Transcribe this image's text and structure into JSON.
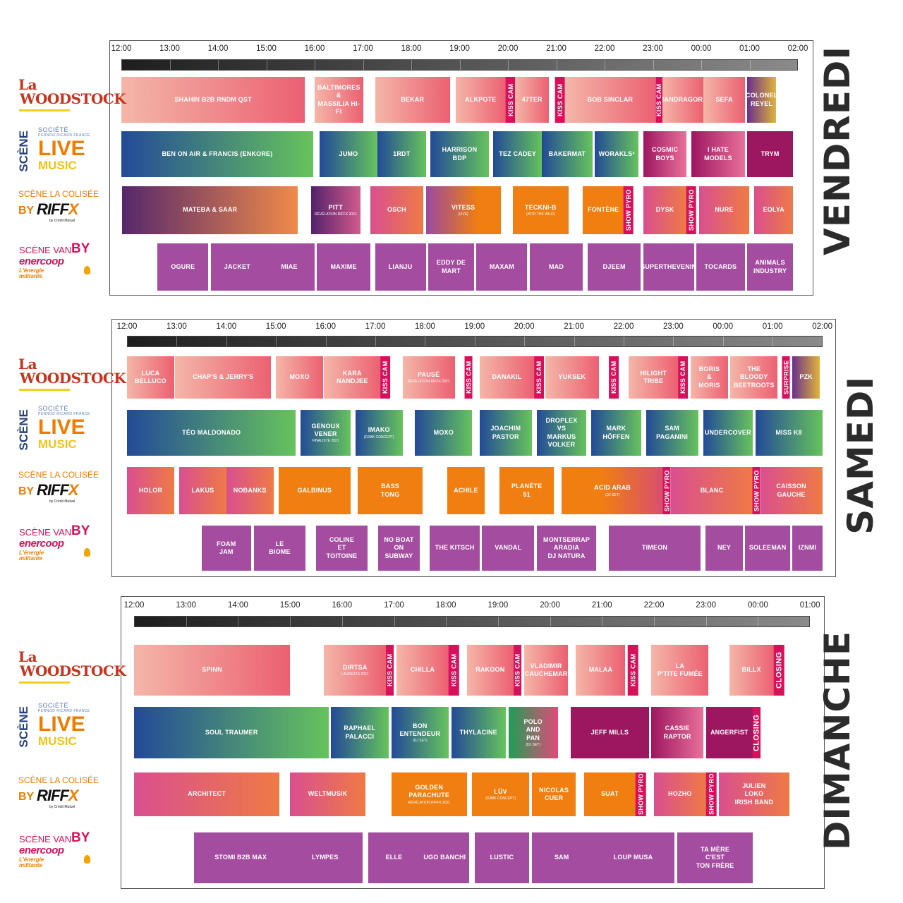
{
  "colors": {
    "woodstock": [
      "#f4b6a8",
      "#ec6072"
    ],
    "live": [
      "#234a98",
      "#66c35c"
    ],
    "colisee_orange": "#f07e10",
    "colisee_grad": [
      "#d94f8f",
      "#ef7a45"
    ],
    "van_purple": "#a44da0",
    "dark_magenta": "#9d1660",
    "tag_pink": "#d6105b"
  },
  "logos": {
    "woodstock": {
      "line1": "La",
      "line2": "WOODSTOCK"
    },
    "live": {
      "scene": "SCÈNE",
      "societe": "SOCIÉTÉ",
      "societe_sub": "PERNOD RICARD FRANCE",
      "live": "LIVE",
      "music": "MUSIC"
    },
    "colisee": {
      "title": "SCÈNE LA COLISÉE",
      "by": "BY",
      "riff": "RIFF",
      "x": "X",
      "cm": "by Crédit Mutuel"
    },
    "van": {
      "title": "SCÈNE VAN",
      "by": "BY",
      "brand": "enercoop",
      "tagline": "L'énergie\nmilitante"
    }
  },
  "days": [
    {
      "name": "VENDREDI",
      "ticks": [
        "12:00",
        "13:00",
        "14:00",
        "15:00",
        "16:00",
        "17:00",
        "18:00",
        "19:00",
        "20:00",
        "21:00",
        "22:00",
        "23:00",
        "00:00",
        "01:00",
        "02:00"
      ],
      "rows": [
        [
          {
            "t": "SHAHIN B2B RNDM QST",
            "x1": 0.0,
            "x2": 3.8,
            "s": "wood"
          },
          {
            "t": "BALTIMORES\n&\nMASSILIA HI-FI",
            "x1": 4.0,
            "x2": 5.0,
            "s": "wood"
          },
          {
            "t": "BEKAR",
            "x1": 5.25,
            "x2": 6.8,
            "s": "wood"
          },
          {
            "t": "ALKPOTE",
            "x1": 6.92,
            "x2": 7.95,
            "s": "wood"
          },
          {
            "tag": "KISS CAM",
            "x1": 7.95,
            "x2": 8.15
          },
          {
            "t": "47TER",
            "x1": 8.15,
            "x2": 8.85,
            "s": "wood"
          },
          {
            "tag": "KISS CAM",
            "x1": 8.98,
            "x2": 9.18
          },
          {
            "t": "BOB SINCLAR",
            "x1": 9.18,
            "x2": 11.05,
            "s": "wood"
          },
          {
            "tag": "KISS CAM",
            "x1": 11.05,
            "x2": 11.2
          },
          {
            "t": "MANDRAGORA",
            "x1": 11.2,
            "x2": 12.05,
            "s": "wood"
          },
          {
            "t": "SEFA",
            "x1": 12.05,
            "x2": 12.9,
            "s": "wood"
          },
          {
            "t": "COLONEL\nREYEL",
            "x1": 12.95,
            "x2": 13.55,
            "s": "colonel"
          }
        ],
        [
          {
            "t": "BEN ON AIR & FRANCIS (ENKORE)",
            "x1": 0.0,
            "x2": 3.97,
            "s": "live"
          },
          {
            "t": "JUMO",
            "x1": 4.1,
            "x2": 5.3,
            "s": "live"
          },
          {
            "t": "1RDT",
            "x1": 5.3,
            "x2": 6.3,
            "s": "live"
          },
          {
            "t": "HARRISON\nBDP",
            "x1": 6.4,
            "x2": 7.6,
            "s": "live"
          },
          {
            "t": "TEZ CADEY",
            "x1": 7.7,
            "x2": 8.7,
            "s": "live"
          },
          {
            "t": "BAKERMAT",
            "x1": 8.7,
            "x2": 9.75,
            "s": "live"
          },
          {
            "t": "WORAKLS²",
            "x1": 9.8,
            "x2": 10.7,
            "s": "live"
          },
          {
            "t": "COSMIC\nBOYS",
            "x1": 10.8,
            "x2": 11.7,
            "s": "mag"
          },
          {
            "t": "I HATE\nMODELS",
            "x1": 11.8,
            "x2": 12.9,
            "s": "mag"
          },
          {
            "t": "TRYM",
            "x1": 12.95,
            "x2": 13.9,
            "s": "dmag"
          }
        ],
        [
          {
            "t": "MATEBA & SAAR",
            "x1": 0.02,
            "x2": 3.65,
            "s": "mateba"
          },
          {
            "t": "PITT",
            "sub": "RÉVÉLATION RIFFX 2021",
            "x1": 3.92,
            "x2": 4.95,
            "s": "pitt"
          },
          {
            "t": "OSCH",
            "x1": 5.15,
            "x2": 6.25,
            "s": "colg"
          },
          {
            "t": "VITESS",
            "sub": "(LIVE)",
            "x1": 6.3,
            "x2": 7.85,
            "s": "vitess"
          },
          {
            "t": "TECKNI-B",
            "sub": "(INTO THE WILD)",
            "x1": 8.1,
            "x2": 9.25,
            "s": "ora"
          },
          {
            "t": "FONTÈNE",
            "x1": 9.55,
            "x2": 10.4,
            "s": "ora"
          },
          {
            "tag": "SHOW PYRO",
            "x1": 10.4,
            "x2": 10.6
          },
          {
            "t": "DYSK",
            "x1": 10.8,
            "x2": 11.7,
            "s": "colg"
          },
          {
            "tag": "SHOW PYRO",
            "x1": 11.7,
            "x2": 11.9
          },
          {
            "t": "NURE",
            "x1": 11.95,
            "x2": 13.0,
            "s": "colg"
          },
          {
            "t": "EOLYA",
            "x1": 13.1,
            "x2": 13.9,
            "s": "colg"
          }
        ],
        [
          {
            "t": "OGURE",
            "x1": 0.75,
            "x2": 1.8,
            "s": "van"
          },
          {
            "t": "JACKET",
            "x1": 1.85,
            "x2": 2.95,
            "s": "van"
          },
          {
            "t": "MIAE",
            "x1": 2.95,
            "x2": 4.0,
            "s": "van"
          },
          {
            "t": "MAXIME",
            "x1": 4.05,
            "x2": 5.15,
            "s": "van"
          },
          {
            "t": "LIANJU",
            "x1": 5.25,
            "x2": 6.3,
            "s": "van"
          },
          {
            "t": "EDDY DE MART",
            "x1": 6.35,
            "x2": 7.3,
            "s": "van"
          },
          {
            "t": "MAXAM",
            "x1": 7.35,
            "x2": 8.4,
            "s": "van"
          },
          {
            "t": "MAD",
            "x1": 8.45,
            "x2": 9.55,
            "s": "van"
          },
          {
            "t": "DJEEM",
            "x1": 9.65,
            "x2": 10.75,
            "s": "van"
          },
          {
            "t": "SUPERTHEVENIN",
            "x1": 10.8,
            "x2": 11.85,
            "s": "van"
          },
          {
            "t": "TOCARDS",
            "x1": 11.9,
            "x2": 12.9,
            "s": "van"
          },
          {
            "t": "ANIMALS\nINDUSTRY",
            "x1": 12.95,
            "x2": 13.9,
            "s": "van"
          }
        ]
      ]
    },
    {
      "name": "SAMEDI",
      "ticks": [
        "12:00",
        "13:00",
        "14:00",
        "15:00",
        "16:00",
        "17:00",
        "18:00",
        "19:00",
        "20:00",
        "21:00",
        "22:00",
        "23:00",
        "00:00",
        "01:00",
        "02:00"
      ],
      "rows": [
        [
          {
            "t": "LUCA\nBELLUCO",
            "x1": 0.0,
            "x2": 0.95,
            "s": "wood"
          },
          {
            "t": "CHAP'S & JERRY'S",
            "x1": 0.97,
            "x2": 2.9,
            "s": "wood"
          },
          {
            "t": "MOXO",
            "x1": 3.0,
            "x2": 3.95,
            "s": "wood"
          },
          {
            "t": "KARA\nNANDJEE",
            "x1": 3.97,
            "x2": 5.1,
            "s": "wood"
          },
          {
            "tag": "KISS CAM",
            "x1": 5.1,
            "x2": 5.3
          },
          {
            "t": "PAUSÉ",
            "sub": "RÉVÉLATION RIFFX 2021",
            "x1": 5.55,
            "x2": 6.6,
            "s": "wood"
          },
          {
            "tag": "KISS CAM",
            "x1": 6.8,
            "x2": 6.95
          },
          {
            "t": "DANAKIL",
            "x1": 7.1,
            "x2": 8.2,
            "s": "wood"
          },
          {
            "tag": "KISS CAM",
            "x1": 8.2,
            "x2": 8.4
          },
          {
            "t": "YUKSEK",
            "x1": 8.42,
            "x2": 9.5,
            "s": "wood"
          },
          {
            "tag": "KISS CAM",
            "x1": 9.7,
            "x2": 9.9
          },
          {
            "t": "HILIGHT\nTRIBE",
            "x1": 10.1,
            "x2": 11.1,
            "s": "wood"
          },
          {
            "tag": "KISS CAM",
            "x1": 11.1,
            "x2": 11.3
          },
          {
            "t": "BORIS\n&\nMORIS",
            "x1": 11.35,
            "x2": 12.1,
            "s": "wood"
          },
          {
            "t": "THE\nBLOODY\nBEETROOTS",
            "x1": 12.15,
            "x2": 13.1,
            "s": "wood"
          },
          {
            "tag": "SURPRISE",
            "x1": 13.2,
            "x2": 13.35
          },
          {
            "t": "PZK",
            "x1": 13.4,
            "x2": 13.95,
            "s": "colonel"
          }
        ],
        [
          {
            "t": "TÉO MALDONADO",
            "x1": 0.0,
            "x2": 3.4,
            "s": "live"
          },
          {
            "t": "GENOUX\nVENER",
            "sub": "FINALISTE 2021",
            "x1": 3.5,
            "x2": 4.5,
            "s": "live"
          },
          {
            "t": "IMAKO",
            "sub": "(DJMK CONCEPT)",
            "x1": 4.6,
            "x2": 5.55,
            "s": "live"
          },
          {
            "t": "MOXO",
            "x1": 5.8,
            "x2": 6.95,
            "s": "live"
          },
          {
            "t": "JOACHIM\nPASTOR",
            "x1": 7.1,
            "x2": 8.15,
            "s": "live"
          },
          {
            "t": "DROPLEX\nVS\nMARKUS\nVOLKER",
            "x1": 8.25,
            "x2": 9.25,
            "s": "live"
          },
          {
            "t": "MARK\nHÖFFEN",
            "x1": 9.35,
            "x2": 10.35,
            "s": "live"
          },
          {
            "t": "SAM\nPAGANINI",
            "x1": 10.45,
            "x2": 11.5,
            "s": "live"
          },
          {
            "t": "UNDERCOVER",
            "x1": 11.6,
            "x2": 12.6,
            "s": "live"
          },
          {
            "t": "MISS K8",
            "x1": 12.65,
            "x2": 14.0,
            "s": "live"
          }
        ],
        [
          {
            "t": "HOLOR",
            "x1": 0.0,
            "x2": 0.95,
            "s": "colg"
          },
          {
            "t": "LAKUS",
            "x1": 1.05,
            "x2": 2.0,
            "s": "colg"
          },
          {
            "t": "NOBANKS",
            "x1": 2.0,
            "x2": 2.95,
            "s": "colg"
          },
          {
            "t": "GALBINUS",
            "x1": 3.05,
            "x2": 4.5,
            "s": "ora"
          },
          {
            "t": "BASS\nTONG",
            "x1": 4.65,
            "x2": 5.95,
            "s": "ora"
          },
          {
            "t": "ACHILE",
            "x1": 6.45,
            "x2": 7.2,
            "s": "ora"
          },
          {
            "t": "PLANÈTE\n51",
            "x1": 7.5,
            "x2": 8.6,
            "s": "ora"
          },
          {
            "t": "ACID ARAB",
            "sub": "(DJ SET)",
            "x1": 8.75,
            "x2": 10.8,
            "s": "acid"
          },
          {
            "tag": "SHOW PYRO",
            "x1": 10.8,
            "x2": 10.95
          },
          {
            "t": "BLANC",
            "x1": 10.95,
            "x2": 12.6,
            "s": "colg"
          },
          {
            "tag": "SHOW PYRO",
            "x1": 12.6,
            "x2": 12.75
          },
          {
            "t": "CAISSON\nGAUCHE",
            "x1": 12.75,
            "x2": 14.0,
            "s": "colg"
          }
        ],
        [
          {
            "t": "FOAM\nJAM",
            "x1": 1.5,
            "x2": 2.5,
            "s": "van"
          },
          {
            "t": "LE\nBIOME",
            "x1": 2.55,
            "x2": 3.6,
            "s": "van"
          },
          {
            "t": "COLINE\nET\nTOITOINE",
            "x1": 3.8,
            "x2": 4.85,
            "s": "van"
          },
          {
            "t": "NO BOAT\nON\nSUBWAY",
            "x1": 5.05,
            "x2": 5.9,
            "s": "van"
          },
          {
            "t": "THE KITSCH",
            "x1": 6.1,
            "x2": 7.1,
            "s": "van"
          },
          {
            "t": "VANDAL",
            "x1": 7.15,
            "x2": 8.2,
            "s": "van"
          },
          {
            "t": "MONTSERRAP\nARADIA\nDJ NATURA",
            "x1": 8.25,
            "x2": 9.45,
            "s": "van"
          },
          {
            "t": "TIMEON",
            "x1": 9.7,
            "x2": 11.55,
            "s": "van"
          },
          {
            "t": "NEY",
            "x1": 11.65,
            "x2": 12.4,
            "s": "van"
          },
          {
            "t": "SOLEEMAN",
            "x1": 12.45,
            "x2": 13.35,
            "s": "van"
          },
          {
            "t": "IZNMI",
            "x1": 13.4,
            "x2": 14.0,
            "s": "van"
          }
        ]
      ]
    },
    {
      "name": "DIMANCHE",
      "ticks": [
        "12:00",
        "13:00",
        "14:00",
        "15:00",
        "16:00",
        "17:00",
        "18:00",
        "19:00",
        "20:00",
        "21:00",
        "22:00",
        "23:00",
        "00:00",
        "01:00"
      ],
      "rows": [
        [
          {
            "t": "SPINN",
            "x1": 0.0,
            "x2": 3.0,
            "s": "wood"
          },
          {
            "t": "DIRTSA",
            "sub": "LAURÉATS 2021",
            "x1": 3.65,
            "x2": 4.85,
            "s": "wood"
          },
          {
            "tag": "KISS CAM",
            "x1": 4.85,
            "x2": 5.0
          },
          {
            "t": "CHILLA",
            "x1": 5.05,
            "x2": 6.05,
            "s": "wood"
          },
          {
            "tag": "KISS CAM",
            "x1": 6.05,
            "x2": 6.25
          },
          {
            "t": "RAKOON",
            "x1": 6.4,
            "x2": 7.3,
            "s": "wood"
          },
          {
            "tag": "KISS CAM",
            "x1": 7.3,
            "x2": 7.45
          },
          {
            "t": "VLADIMIR\nCAUCHEMAR",
            "x1": 7.5,
            "x2": 8.35,
            "s": "wood"
          },
          {
            "t": "MALAA",
            "x1": 8.5,
            "x2": 9.45,
            "s": "wood"
          },
          {
            "tag": "KISS CAM",
            "x1": 9.5,
            "x2": 9.7
          },
          {
            "t": "LA\nP'TITE FUMÉE",
            "x1": 9.95,
            "x2": 11.05,
            "s": "wood"
          },
          {
            "t": "BILLX",
            "x1": 11.45,
            "x2": 12.3,
            "s": "wood"
          },
          {
            "tag": "CLOSING",
            "x1": 12.3,
            "x2": 12.5,
            "closing": true
          }
        ],
        [
          {
            "t": "SOUL  TRAUMER",
            "x1": 0.0,
            "x2": 3.75,
            "s": "live"
          },
          {
            "t": "RAPHAEL\nPALACCI",
            "x1": 3.78,
            "x2": 4.9,
            "s": "live"
          },
          {
            "t": "BON\nENTENDEUR",
            "sub": "(DJ SET)",
            "x1": 4.95,
            "x2": 6.05,
            "s": "live"
          },
          {
            "t": "THYLACINE",
            "x1": 6.1,
            "x2": 7.15,
            "s": "live"
          },
          {
            "t": "POLO\nAND\nPAN",
            "sub": "(DJ SET)",
            "x1": 7.2,
            "x2": 8.15,
            "s": "polo"
          },
          {
            "t": "JEFF MILLS",
            "x1": 8.4,
            "x2": 9.9,
            "s": "dmag"
          },
          {
            "t": "CASSIE\nRAPTOR",
            "x1": 9.95,
            "x2": 10.95,
            "s": "mag"
          },
          {
            "t": "ANGERFIST",
            "x1": 11.0,
            "x2": 11.9,
            "s": "dmag"
          },
          {
            "tag": "CLOSING",
            "x1": 11.9,
            "x2": 12.05,
            "closing": true
          }
        ],
        [
          {
            "t": "ARCHITECT",
            "x1": 0.0,
            "x2": 2.8,
            "s": "colg"
          },
          {
            "t": "WELTMUSIK",
            "x1": 3.0,
            "x2": 4.45,
            "s": "colg"
          },
          {
            "t": "GOLDEN\nPARACHUTE",
            "sub": "RÉVÉLATION RIFFX 2021",
            "x1": 4.95,
            "x2": 6.4,
            "s": "ora"
          },
          {
            "t": "LÜV",
            "sub": "(DJMK CONCEPT)",
            "x1": 6.5,
            "x2": 7.6,
            "s": "ora"
          },
          {
            "t": "NICOLAS\nCUER",
            "x1": 7.65,
            "x2": 8.5,
            "s": "ora"
          },
          {
            "t": "SUAT",
            "x1": 8.65,
            "x2": 9.65,
            "s": "ora"
          },
          {
            "tag": "SHOW PYRO",
            "x1": 9.65,
            "x2": 9.85
          },
          {
            "t": "HOZHO",
            "x1": 10.0,
            "x2": 11.0,
            "s": "colg"
          },
          {
            "tag": "SHOW PYRO",
            "x1": 11.0,
            "x2": 11.2
          },
          {
            "t": "JULIEN\nLOKO\nIRISH BAND",
            "x1": 11.25,
            "x2": 12.6,
            "s": "colg"
          }
        ],
        [
          {
            "t": "STOMI B2B MAX",
            "x1": 1.15,
            "x2": 2.95,
            "s": "van"
          },
          {
            "t": "LYMPES",
            "x1": 2.95,
            "x2": 4.4,
            "s": "van"
          },
          {
            "t": "ELLE",
            "x1": 4.5,
            "x2": 5.5,
            "s": "van"
          },
          {
            "t": "UGO BANCHI",
            "x1": 5.5,
            "x2": 6.45,
            "s": "van"
          },
          {
            "t": "LUSTIC",
            "x1": 6.55,
            "x2": 7.6,
            "s": "van"
          },
          {
            "t": "SAM",
            "x1": 7.65,
            "x2": 8.8,
            "s": "van"
          },
          {
            "t": "LOUP MUSA",
            "x1": 8.8,
            "x2": 10.4,
            "s": "van"
          },
          {
            "t": "TA MÈRE\nC'EST\nTON FRÈRE",
            "x1": 10.45,
            "x2": 11.9,
            "s": "van"
          }
        ]
      ]
    }
  ]
}
